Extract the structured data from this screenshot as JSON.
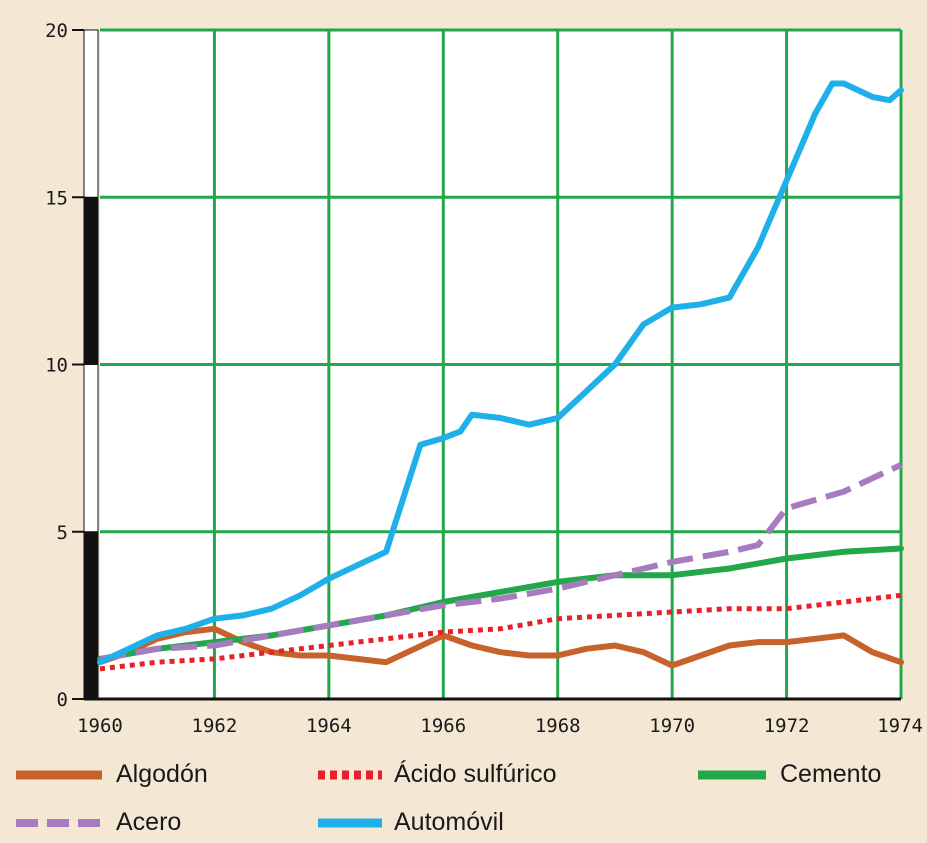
{
  "chart_data": {
    "type": "line",
    "title": "",
    "xlabel": "",
    "ylabel": "",
    "xlim": [
      1960,
      1974
    ],
    "ylim": [
      0,
      20
    ],
    "x_ticks": [
      1960,
      1962,
      1964,
      1966,
      1968,
      1970,
      1972,
      1974
    ],
    "y_ticks": [
      0,
      5,
      10,
      15,
      20
    ],
    "grid": true,
    "legend_position": "bottom",
    "series": [
      {
        "name": "Algodón",
        "color": "#c8622c",
        "style": "solid",
        "points": [
          [
            1960,
            1.1
          ],
          [
            1960.5,
            1.4
          ],
          [
            1961,
            1.8
          ],
          [
            1961.5,
            2.0
          ],
          [
            1962,
            2.1
          ],
          [
            1962.5,
            1.7
          ],
          [
            1963,
            1.4
          ],
          [
            1963.5,
            1.3
          ],
          [
            1964,
            1.3
          ],
          [
            1964.5,
            1.2
          ],
          [
            1965,
            1.1
          ],
          [
            1965.5,
            1.5
          ],
          [
            1966,
            1.9
          ],
          [
            1966.5,
            1.6
          ],
          [
            1967,
            1.4
          ],
          [
            1967.5,
            1.3
          ],
          [
            1968,
            1.3
          ],
          [
            1968.5,
            1.5
          ],
          [
            1969,
            1.6
          ],
          [
            1969.5,
            1.4
          ],
          [
            1970,
            1.0
          ],
          [
            1970.5,
            1.3
          ],
          [
            1971,
            1.6
          ],
          [
            1971.5,
            1.7
          ],
          [
            1972,
            1.7
          ],
          [
            1972.5,
            1.8
          ],
          [
            1973,
            1.9
          ],
          [
            1973.5,
            1.4
          ],
          [
            1974,
            1.1
          ]
        ]
      },
      {
        "name": "Ácido sulfúrico",
        "color": "#e8202a",
        "style": "dotted",
        "points": [
          [
            1960,
            0.9
          ],
          [
            1961,
            1.1
          ],
          [
            1962,
            1.2
          ],
          [
            1963,
            1.4
          ],
          [
            1964,
            1.6
          ],
          [
            1965,
            1.8
          ],
          [
            1966,
            2.0
          ],
          [
            1967,
            2.1
          ],
          [
            1968,
            2.4
          ],
          [
            1969,
            2.5
          ],
          [
            1970,
            2.6
          ],
          [
            1971,
            2.7
          ],
          [
            1972,
            2.7
          ],
          [
            1973,
            2.9
          ],
          [
            1974,
            3.1
          ]
        ]
      },
      {
        "name": "Cemento",
        "color": "#22a84a",
        "style": "solid",
        "points": [
          [
            1960,
            1.2
          ],
          [
            1961,
            1.5
          ],
          [
            1962,
            1.7
          ],
          [
            1963,
            1.9
          ],
          [
            1964,
            2.2
          ],
          [
            1965,
            2.5
          ],
          [
            1966,
            2.9
          ],
          [
            1967,
            3.2
          ],
          [
            1968,
            3.5
          ],
          [
            1969,
            3.7
          ],
          [
            1970,
            3.7
          ],
          [
            1971,
            3.9
          ],
          [
            1972,
            4.2
          ],
          [
            1973,
            4.4
          ],
          [
            1974,
            4.5
          ]
        ]
      },
      {
        "name": "Acero",
        "color": "#a77bbf",
        "style": "dashed",
        "points": [
          [
            1960,
            1.2
          ],
          [
            1961,
            1.5
          ],
          [
            1962,
            1.6
          ],
          [
            1963,
            1.9
          ],
          [
            1964,
            2.2
          ],
          [
            1965,
            2.5
          ],
          [
            1966,
            2.8
          ],
          [
            1967,
            3.0
          ],
          [
            1968,
            3.3
          ],
          [
            1969,
            3.7
          ],
          [
            1970,
            4.1
          ],
          [
            1971,
            4.4
          ],
          [
            1971.5,
            4.6
          ],
          [
            1972,
            5.7
          ],
          [
            1973,
            6.2
          ],
          [
            1974,
            7.0
          ]
        ]
      },
      {
        "name": "Automóvil",
        "color": "#1fb0ea",
        "style": "solid",
        "points": [
          [
            1960,
            1.1
          ],
          [
            1960.5,
            1.5
          ],
          [
            1961,
            1.9
          ],
          [
            1961.5,
            2.1
          ],
          [
            1962,
            2.4
          ],
          [
            1962.5,
            2.5
          ],
          [
            1963,
            2.7
          ],
          [
            1963.5,
            3.1
          ],
          [
            1964,
            3.6
          ],
          [
            1964.5,
            4.0
          ],
          [
            1965,
            4.4
          ],
          [
            1965.3,
            6.0
          ],
          [
            1965.6,
            7.6
          ],
          [
            1966,
            7.8
          ],
          [
            1966.3,
            8.0
          ],
          [
            1966.5,
            8.5
          ],
          [
            1967,
            8.4
          ],
          [
            1967.5,
            8.2
          ],
          [
            1968,
            8.4
          ],
          [
            1968.5,
            9.2
          ],
          [
            1969,
            10.0
          ],
          [
            1969.5,
            11.2
          ],
          [
            1970,
            11.7
          ],
          [
            1970.5,
            11.8
          ],
          [
            1971,
            12.0
          ],
          [
            1971.5,
            13.5
          ],
          [
            1972,
            15.5
          ],
          [
            1972.5,
            17.5
          ],
          [
            1972.8,
            18.4
          ],
          [
            1973,
            18.4
          ],
          [
            1973.5,
            18.0
          ],
          [
            1973.8,
            17.9
          ],
          [
            1974,
            18.2
          ]
        ]
      }
    ]
  },
  "legend": {
    "items": [
      {
        "label": "Algodón",
        "color": "#c8622c",
        "style": "solid"
      },
      {
        "label": "Ácido sulfúrico",
        "color": "#e8202a",
        "style": "dotted"
      },
      {
        "label": "Cemento",
        "color": "#22a84a",
        "style": "solid"
      },
      {
        "label": "Acero",
        "color": "#a77bbf",
        "style": "dashed"
      },
      {
        "label": "Automóvil",
        "color": "#1fb0ea",
        "style": "solid"
      }
    ]
  },
  "colors": {
    "background": "#f4e8d4",
    "plot_background": "#ffffff",
    "grid": "#22a84a",
    "axis": "#1a1a1a"
  }
}
